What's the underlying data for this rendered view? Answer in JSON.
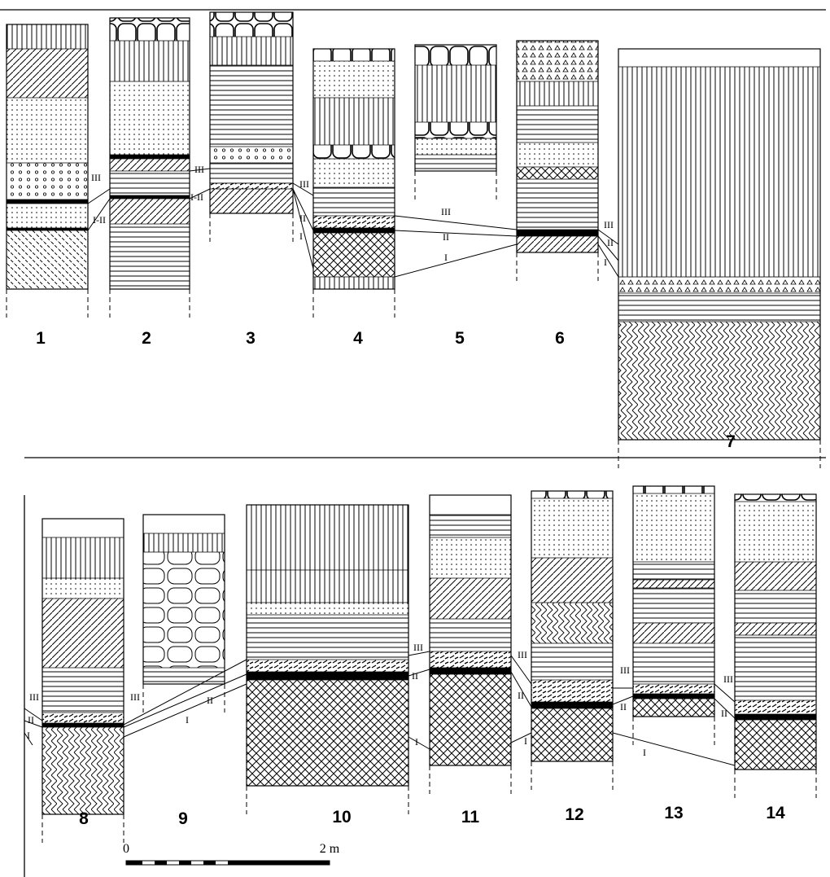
{
  "column_labels": [
    "1",
    "2",
    "3",
    "4",
    "5",
    "6",
    "7",
    "8",
    "9",
    "10",
    "11",
    "12",
    "13",
    "14"
  ],
  "horizon_labels": [
    "III",
    "I-II",
    "III",
    "I-II",
    "III",
    "II",
    "I",
    "III",
    "II",
    "I",
    "III",
    "II",
    "I",
    "III",
    "II",
    "I",
    "III",
    "II",
    "I",
    "III",
    "II",
    "I",
    "III",
    "II",
    "I",
    "III",
    "II",
    "III",
    "II",
    "I"
  ],
  "scale": {
    "start": "0",
    "end": "2 m"
  }
}
